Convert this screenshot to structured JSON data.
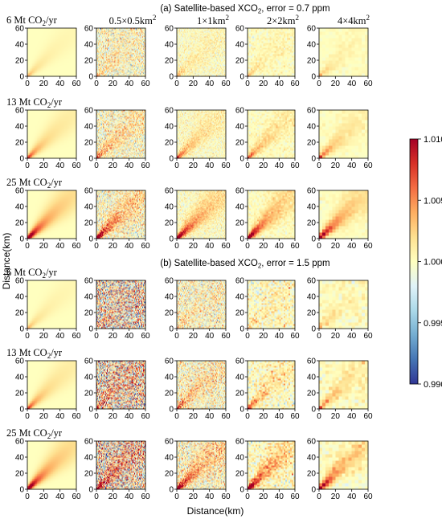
{
  "chart_data": {
    "type": "heatmap",
    "section_titles": [
      {
        "prefix": "(a) Satellite-based XCO",
        "sub": "2",
        "suffix": ", error = 0.7 ppm"
      },
      {
        "prefix": "(b) Satellite-based XCO",
        "sub": "2",
        "suffix": ", error = 1.5 ppm"
      }
    ],
    "column_headers": [
      {
        "main": "0.5×0.5km",
        "sup": "2"
      },
      {
        "main": "1×1km",
        "sup": "2"
      },
      {
        "main": "2×2km",
        "sup": "2"
      },
      {
        "main": "4×4km",
        "sup": "2"
      }
    ],
    "row_labels": [
      {
        "prefix": "6 Mt CO",
        "sub": "2",
        "suffix": "/yr"
      },
      {
        "prefix": "13 Mt CO",
        "sub": "2",
        "suffix": "/yr"
      },
      {
        "prefix": "25 Mt CO",
        "sub": "2",
        "suffix": "/yr"
      },
      {
        "prefix": "6 Mt CO",
        "sub": "2",
        "suffix": "/yr"
      },
      {
        "prefix": "13 Mt CO",
        "sub": "2",
        "suffix": "/yr"
      },
      {
        "prefix": "25 Mt CO",
        "sub": "2",
        "suffix": "/yr"
      }
    ],
    "xlabel": "Distance(km)",
    "ylabel": "Distance(km)",
    "xlim": [
      0,
      60
    ],
    "ylim": [
      0,
      60
    ],
    "x_ticks": [
      "0",
      "20",
      "40",
      "60"
    ],
    "y_ticks": [
      "0",
      "20",
      "40",
      "60"
    ],
    "colorbar": {
      "min": 0.99,
      "max": 1.01,
      "ticks": [
        "1.010",
        "1.005",
        "1.000",
        "0.995",
        "0.990"
      ],
      "colormap": "RdYlBu_r",
      "stops": [
        "#313695",
        "#4575b4",
        "#74add1",
        "#abd9e9",
        "#e0f3f8",
        "#ffffbf",
        "#fee090",
        "#fdae61",
        "#f46d43",
        "#d73027",
        "#a50026"
      ]
    },
    "panels": {
      "emissions_mt_per_yr": [
        6,
        13,
        25
      ],
      "retrieval_error_ppm": [
        0.7,
        1.5
      ],
      "grid_resolution_km": [
        null,
        0.5,
        1,
        2,
        4
      ],
      "plume_direction": "diagonal from origin toward (60, 60)"
    }
  }
}
